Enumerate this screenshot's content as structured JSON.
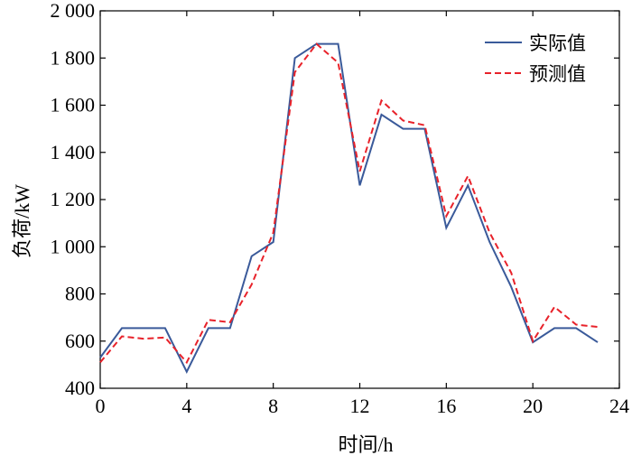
{
  "chart_data": {
    "type": "line",
    "title": "",
    "xlabel": "时间/h",
    "ylabel": "负荷/kW",
    "xlim": [
      0,
      24
    ],
    "ylim": [
      400,
      2000
    ],
    "x_ticks": [
      0,
      4,
      8,
      12,
      16,
      20,
      24
    ],
    "x_tick_labels": [
      "0",
      "4",
      "8",
      "12",
      "16",
      "20",
      "24"
    ],
    "y_ticks": [
      400,
      600,
      800,
      1000,
      1200,
      1400,
      1600,
      1800,
      2000
    ],
    "y_tick_labels": [
      "400",
      "600",
      "800",
      "1 000",
      "1 200",
      "1 400",
      "1 600",
      "1 800",
      "2 000"
    ],
    "grid": false,
    "legend_position": "top-right",
    "x": [
      0,
      1,
      2,
      3,
      4,
      5,
      6,
      7,
      8,
      9,
      10,
      11,
      12,
      13,
      14,
      15,
      16,
      17,
      18,
      19,
      20,
      21,
      22,
      23
    ],
    "series": [
      {
        "name": "实际值",
        "color": "#3a5a9a",
        "style": "solid",
        "values": [
          530,
          655,
          655,
          655,
          470,
          655,
          655,
          960,
          1020,
          1800,
          1860,
          1860,
          1260,
          1560,
          1500,
          1500,
          1080,
          1260,
          1020,
          830,
          595,
          655,
          655,
          595
        ]
      },
      {
        "name": "预测值",
        "color": "#e8222a",
        "style": "dashed",
        "values": [
          510,
          620,
          610,
          615,
          510,
          690,
          680,
          840,
          1060,
          1740,
          1860,
          1780,
          1320,
          1620,
          1535,
          1515,
          1130,
          1300,
          1060,
          890,
          600,
          745,
          670,
          660
        ]
      }
    ]
  }
}
